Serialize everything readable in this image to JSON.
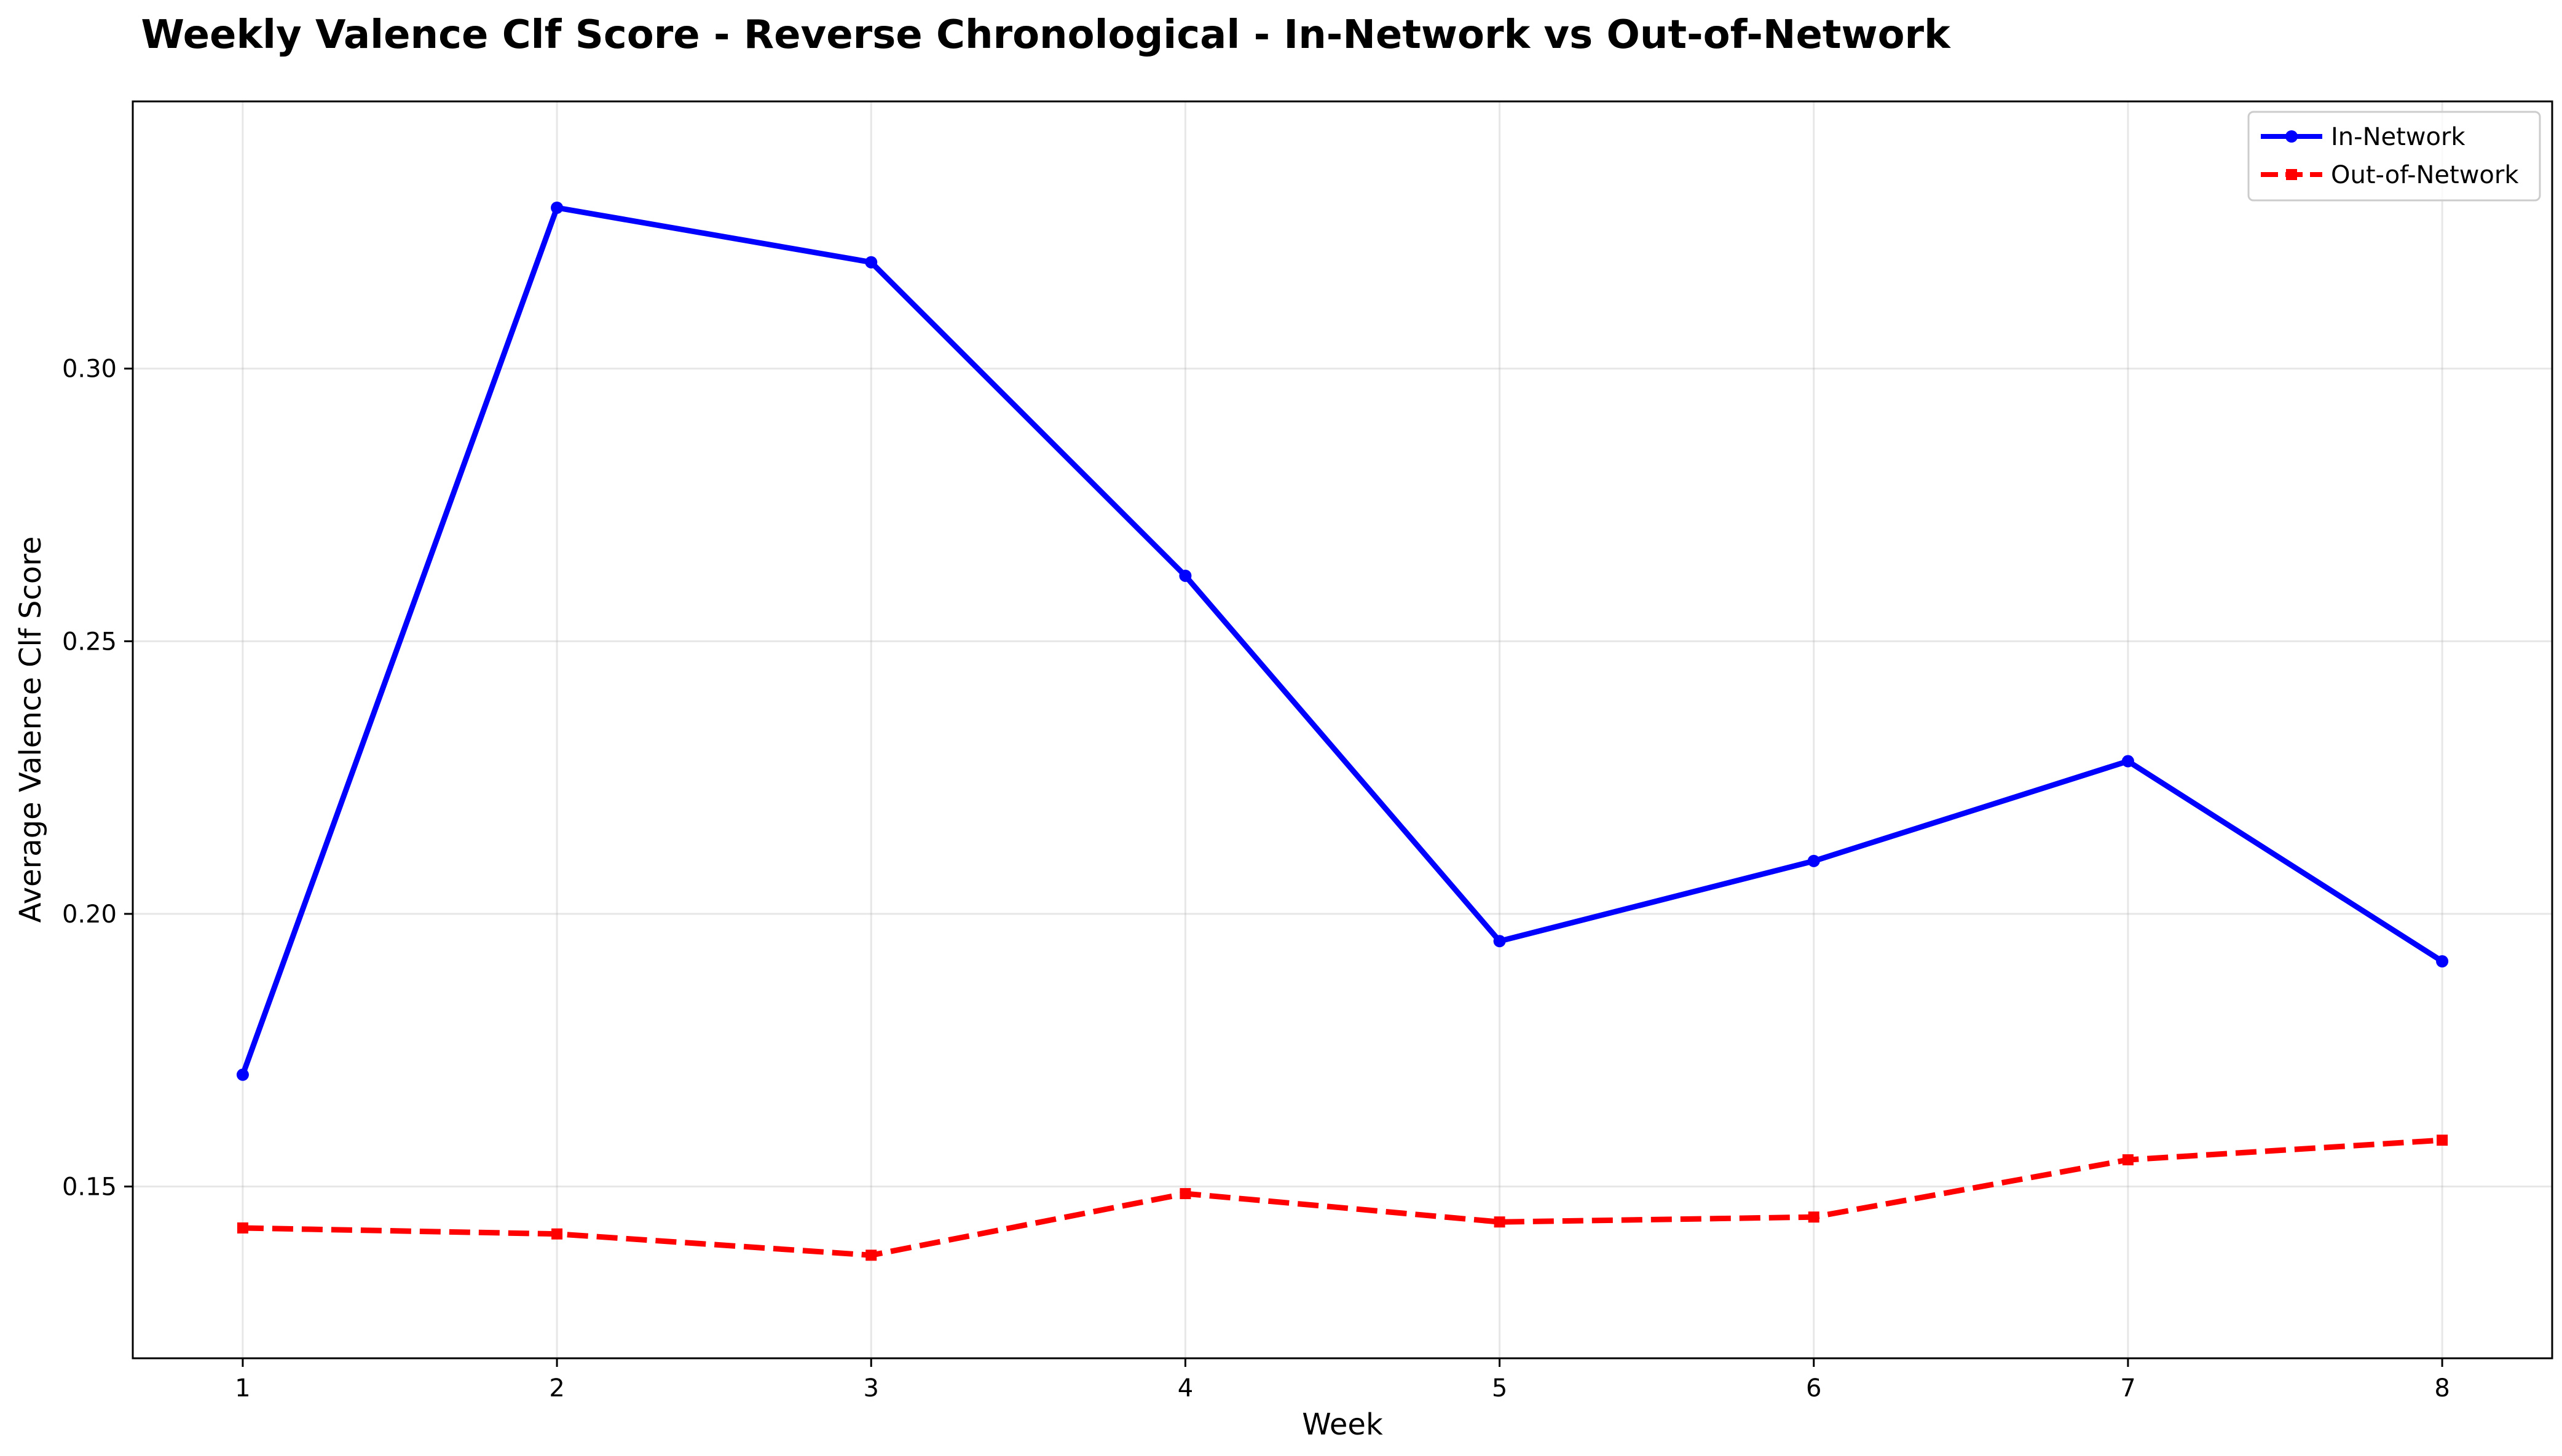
{
  "chart_data": {
    "type": "line",
    "title": "Weekly Valence Clf Score - Reverse Chronological - In-Network vs Out-of-Network",
    "xlabel": "Week",
    "ylabel": "Average Valence Clf Score",
    "x": [
      1,
      2,
      3,
      4,
      5,
      6,
      7,
      8
    ],
    "x_ticks": [
      "1",
      "2",
      "3",
      "4",
      "5",
      "6",
      "7",
      "8"
    ],
    "xlim": [
      0.65,
      8.35
    ],
    "ylim": [
      0.1185,
      0.349
    ],
    "y_ticks": [
      "0.15",
      "0.20",
      "0.25",
      "0.30"
    ],
    "grid": true,
    "legend_position": "top-right",
    "series": [
      {
        "name": "In-Network",
        "color": "#0000ff",
        "line_style": "solid",
        "marker": "circle",
        "values": [
          0.1705,
          0.3295,
          0.3195,
          0.262,
          0.195,
          0.2097,
          0.228,
          0.1913
        ]
      },
      {
        "name": "Out-of-Network",
        "color": "#ff0000",
        "line_style": "dashed",
        "marker": "square",
        "values": [
          0.1424,
          0.1413,
          0.1374,
          0.1487,
          0.1435,
          0.1444,
          0.1549,
          0.1585
        ]
      }
    ]
  }
}
